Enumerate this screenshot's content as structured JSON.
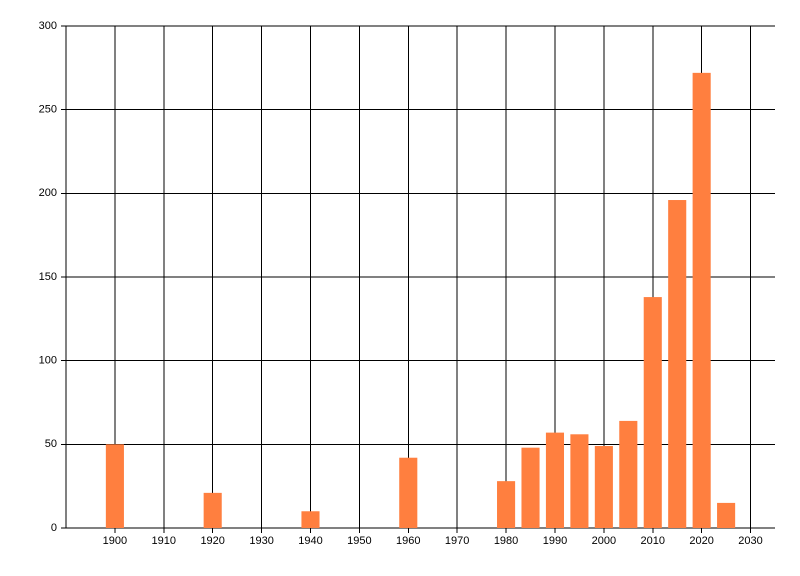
{
  "chart_data": {
    "type": "bar",
    "x": [
      1900,
      1920,
      1940,
      1960,
      1980,
      1985,
      1990,
      1995,
      2000,
      2005,
      2010,
      2015,
      2020,
      2025
    ],
    "values": [
      50,
      21,
      10,
      42,
      28,
      48,
      57,
      56,
      49,
      64,
      138,
      196,
      272,
      15
    ],
    "color": "#ff7f3f",
    "xlim": [
      1890,
      2035
    ],
    "xticks": [
      1900,
      1910,
      1920,
      1930,
      1940,
      1950,
      1960,
      1970,
      1980,
      1990,
      2000,
      2010,
      2020,
      2030
    ],
    "ylim": [
      0,
      300
    ],
    "yticks": [
      0,
      50,
      100,
      150,
      200,
      250,
      300
    ],
    "grid": true
  }
}
